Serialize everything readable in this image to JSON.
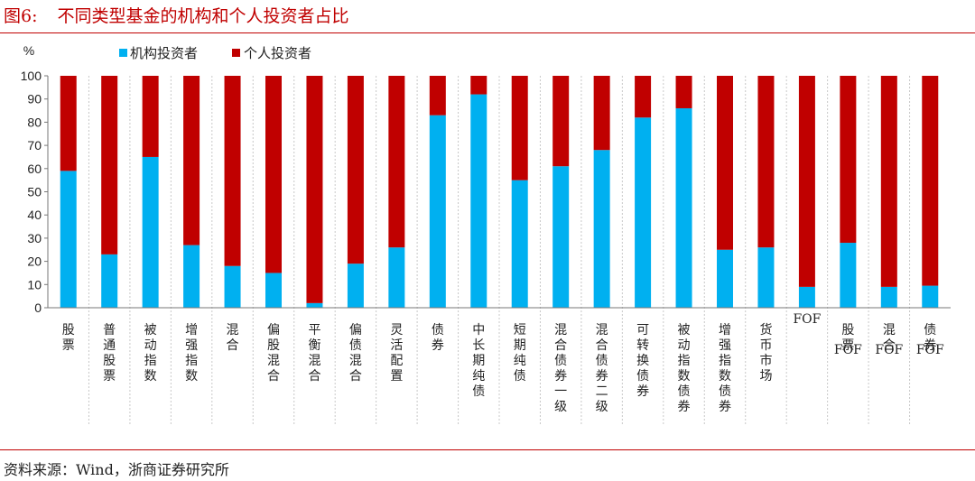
{
  "figure": {
    "label": "图6:",
    "title": "不同类型基金的机构和个人投资者占比",
    "source": "资料来源：Wind，浙商证券研究所"
  },
  "colors": {
    "institution": "#00b0f0",
    "individual": "#c00000",
    "accent": "#c00000"
  },
  "chart_data": {
    "type": "bar",
    "stacked": true,
    "ylabel": "%",
    "ylim": [
      0,
      100
    ],
    "yticks": [
      0,
      10,
      20,
      30,
      40,
      50,
      60,
      70,
      80,
      90,
      100
    ],
    "grid": false,
    "legend_position": "top",
    "categories": [
      "股票",
      "普通股票",
      "被动指数",
      "增强指数",
      "混合",
      "偏股混合",
      "平衡混合",
      "偏债混合",
      "灵活配置",
      "债券",
      "中长期纯债",
      "短期纯债",
      "混合债券一级",
      "混合债券二级",
      "可转换债券",
      "被动指数债券",
      "增强指数债券",
      "货币市场",
      "FOF",
      "股票FOF",
      "混合FOF",
      "债券FOF"
    ],
    "series": [
      {
        "name": "机构投资者",
        "values": [
          59,
          23,
          65,
          27,
          18,
          15,
          2,
          19,
          26,
          83,
          92,
          55,
          61,
          68,
          82,
          86,
          25,
          26,
          9,
          28,
          9,
          9.5
        ]
      },
      {
        "name": "个人投资者",
        "values": [
          41,
          77,
          35,
          73,
          82,
          85,
          98,
          81,
          74,
          17,
          8,
          45,
          39,
          32,
          18,
          14,
          75,
          74,
          91,
          72,
          91,
          90.5
        ]
      }
    ]
  }
}
